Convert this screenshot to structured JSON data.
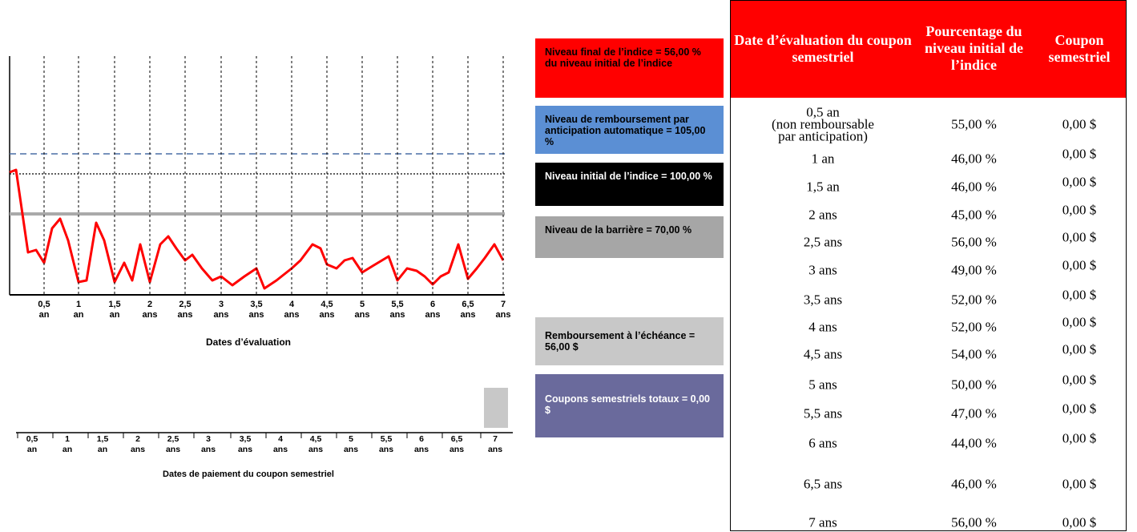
{
  "chart": {
    "x_labels": [
      [
        "0,5",
        "an"
      ],
      [
        "1",
        "an"
      ],
      [
        "1,5",
        "an"
      ],
      [
        "2",
        "ans"
      ],
      [
        "2,5",
        "ans"
      ],
      [
        "3",
        "ans"
      ],
      [
        "3,5",
        "ans"
      ],
      [
        "4",
        "ans"
      ],
      [
        "4,5",
        "ans"
      ],
      [
        "5",
        "ans"
      ],
      [
        "5,5",
        "ans"
      ],
      [
        "6",
        "ans"
      ],
      [
        "6,5",
        "ans"
      ],
      [
        "7",
        "ans"
      ]
    ],
    "x_axis_title": "Dates d’évaluation",
    "payment_labels": [
      [
        "0,5",
        "an"
      ],
      [
        "1",
        "an"
      ],
      [
        "1,5",
        "an"
      ],
      [
        "2",
        "ans"
      ],
      [
        "2,5",
        "ans"
      ],
      [
        "3",
        "ans"
      ],
      [
        "3,5",
        "ans"
      ],
      [
        "4",
        "ans"
      ],
      [
        "4,5",
        "ans"
      ],
      [
        "5",
        "ans"
      ],
      [
        "5,5",
        "ans"
      ],
      [
        "6",
        "ans"
      ],
      [
        "6,5",
        "ans"
      ],
      [
        "7",
        "ans"
      ]
    ],
    "payment_axis_title": "Dates de paiement du coupon semestriel"
  },
  "legend": [
    "Niveau final de l’indice = 56,00 % du niveau initial de l’indice",
    "Niveau de remboursement par anticipation automatique = 105,00 %",
    "Niveau initial de l’indice = 100,00 %",
    "Niveau de la barrière = 70,00 %",
    "Remboursement à l’échéance = 56,00 $",
    "Coupons semestriels totaux = 0,00 $"
  ],
  "table": {
    "headers": [
      "Date d’évaluation du coupon semestriel",
      "Pourcentage du niveau initial de l’indice",
      "Coupon semestriel"
    ],
    "rows": [
      [
        "0,5 an\n(non remboursable\npar anticipation)",
        "55,00 %",
        "0,00 $"
      ],
      [
        "1 an",
        "46,00 %",
        "0,00 $"
      ],
      [
        "1,5 an",
        "46,00 %",
        "0,00 $"
      ],
      [
        "2 ans",
        "45,00 %",
        "0,00 $"
      ],
      [
        "2,5 ans",
        "56,00 %",
        "0,00 $"
      ],
      [
        "3 ans",
        "49,00 %",
        "0,00 $"
      ],
      [
        "3,5 ans",
        "52,00 %",
        "0,00 $"
      ],
      [
        "4 ans",
        "52,00 %",
        "0,00 $"
      ],
      [
        "4,5 ans",
        "54,00 %",
        "0,00 $"
      ],
      [
        "5 ans",
        "50,00 %",
        "0,00 $"
      ],
      [
        "5,5 ans",
        "47,00 %",
        "0,00 $"
      ],
      [
        "6 ans",
        "44,00 %",
        "0,00 $"
      ],
      [
        "6,5 ans",
        "46,00 %",
        "0,00 $"
      ],
      [
        "7 ans",
        "56,00 %",
        "0,00 $"
      ]
    ]
  }
}
